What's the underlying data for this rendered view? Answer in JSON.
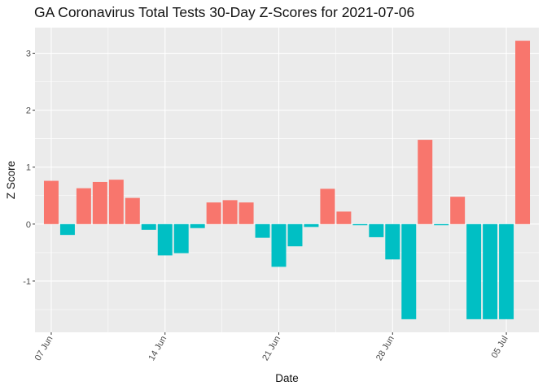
{
  "chart_data": {
    "type": "bar",
    "title": "GA Coronavirus Total Tests 30-Day Z-Scores for 2021-07-06",
    "xlabel": "Date",
    "ylabel": "Z Score",
    "ylim": [
      -1.9,
      3.45
    ],
    "yticks": [
      -1,
      0,
      1,
      2,
      3
    ],
    "xtick_labels": [
      "07 Jun",
      "14 Jun",
      "21 Jun",
      "28 Jun",
      "05 Jul"
    ],
    "xtick_dates": [
      "2021-06-07",
      "2021-06-14",
      "2021-06-21",
      "2021-06-28",
      "2021-07-05"
    ],
    "dates": [
      "2021-06-07",
      "2021-06-08",
      "2021-06-09",
      "2021-06-10",
      "2021-06-11",
      "2021-06-12",
      "2021-06-13",
      "2021-06-14",
      "2021-06-15",
      "2021-06-16",
      "2021-06-17",
      "2021-06-18",
      "2021-06-19",
      "2021-06-20",
      "2021-06-21",
      "2021-06-22",
      "2021-06-23",
      "2021-06-24",
      "2021-06-25",
      "2021-06-26",
      "2021-06-27",
      "2021-06-28",
      "2021-06-29",
      "2021-06-30",
      "2021-07-01",
      "2021-07-02",
      "2021-07-03",
      "2021-07-04",
      "2021-07-05",
      "2021-07-06"
    ],
    "values": [
      0.76,
      -0.19,
      0.63,
      0.74,
      0.78,
      0.46,
      -0.1,
      -0.55,
      -0.51,
      -0.07,
      0.38,
      0.42,
      0.38,
      -0.24,
      -0.75,
      -0.39,
      -0.05,
      0.62,
      0.22,
      -0.02,
      -0.23,
      -0.62,
      -1.67,
      1.48,
      -0.02,
      0.48,
      -1.67,
      -1.67,
      -1.67,
      3.22
    ],
    "colors": {
      "positive": "#F8766D",
      "negative": "#00BFC4",
      "panel": "#EBEBEB",
      "grid": "#FFFFFF"
    }
  }
}
